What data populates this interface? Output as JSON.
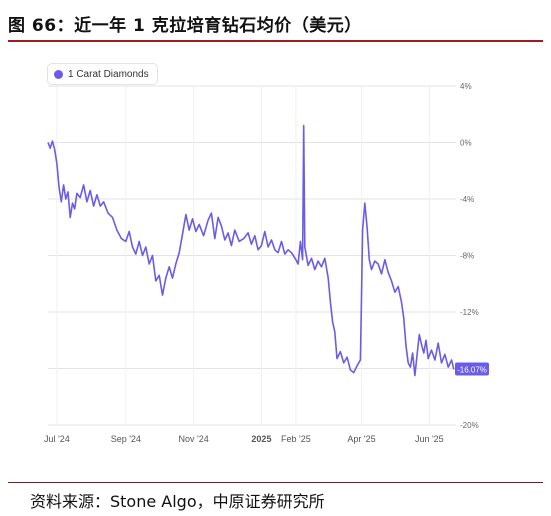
{
  "figure": {
    "title": "图 66：近一年 1 克拉培育钻石均价（美元）",
    "source": "资料来源：Stone Algo，中原证券研究所"
  },
  "colors": {
    "series": "#6b5ce7",
    "title_rule": "#9b1c22",
    "grid": "#e3e3e3"
  },
  "chart_data": {
    "type": "line",
    "title": "",
    "legend_position": "top-left",
    "grid": true,
    "y_axis_position": "right",
    "ylim": [
      -20,
      4
    ],
    "y_ticks": [
      4,
      0,
      -4,
      -8,
      -12,
      -16,
      -20
    ],
    "y_tick_labels": [
      "4%",
      "0%",
      "-4%",
      "-8%",
      "-12%",
      "-16%",
      "-20%"
    ],
    "x_tick_labels": [
      "Jul '24",
      "Sep '24",
      "Nov '24",
      "2025",
      "Feb '25",
      "Apr '25",
      "Jun '25"
    ],
    "x_tick_dates": [
      "2024-07-01",
      "2024-09-01",
      "2024-11-01",
      "2025-01-01",
      "2025-02-01",
      "2025-04-01",
      "2025-06-01"
    ],
    "xlim": [
      "2024-06-23",
      "2025-06-25"
    ],
    "last_value_label": "-16.07%",
    "series": [
      {
        "name": "1 Carat Diamonds",
        "points": [
          [
            "2024-06-23",
            0
          ],
          [
            "2024-06-25",
            -0.4
          ],
          [
            "2024-06-27",
            0.1
          ],
          [
            "2024-06-29",
            -0.5
          ],
          [
            "2024-07-01",
            -1.5
          ],
          [
            "2024-07-03",
            -3.2
          ],
          [
            "2024-07-05",
            -4.2
          ],
          [
            "2024-07-07",
            -3.0
          ],
          [
            "2024-07-09",
            -4.0
          ],
          [
            "2024-07-11",
            -3.5
          ],
          [
            "2024-07-13",
            -5.3
          ],
          [
            "2024-07-15",
            -4.3
          ],
          [
            "2024-07-17",
            -4.7
          ],
          [
            "2024-07-19",
            -3.6
          ],
          [
            "2024-07-22",
            -3.9
          ],
          [
            "2024-07-25",
            -3.0
          ],
          [
            "2024-07-28",
            -4.2
          ],
          [
            "2024-07-31",
            -3.4
          ],
          [
            "2024-08-03",
            -4.5
          ],
          [
            "2024-08-06",
            -3.7
          ],
          [
            "2024-08-09",
            -4.5
          ],
          [
            "2024-08-12",
            -4.2
          ],
          [
            "2024-08-16",
            -5.0
          ],
          [
            "2024-08-20",
            -5.3
          ],
          [
            "2024-08-24",
            -6.2
          ],
          [
            "2024-08-28",
            -6.8
          ],
          [
            "2024-09-01",
            -7.0
          ],
          [
            "2024-09-04",
            -6.3
          ],
          [
            "2024-09-07",
            -7.4
          ],
          [
            "2024-09-10",
            -7.9
          ],
          [
            "2024-09-13",
            -7.0
          ],
          [
            "2024-09-16",
            -8.0
          ],
          [
            "2024-09-19",
            -7.4
          ],
          [
            "2024-09-22",
            -8.6
          ],
          [
            "2024-09-25",
            -8.0
          ],
          [
            "2024-09-28",
            -9.8
          ],
          [
            "2024-10-01",
            -9.4
          ],
          [
            "2024-10-04",
            -10.8
          ],
          [
            "2024-10-07",
            -9.6
          ],
          [
            "2024-10-10",
            -8.8
          ],
          [
            "2024-10-13",
            -9.6
          ],
          [
            "2024-10-16",
            -8.6
          ],
          [
            "2024-10-19",
            -7.8
          ],
          [
            "2024-10-22",
            -6.5
          ],
          [
            "2024-10-25",
            -5.1
          ],
          [
            "2024-10-28",
            -6.2
          ],
          [
            "2024-10-31",
            -5.4
          ],
          [
            "2024-11-03",
            -6.3
          ],
          [
            "2024-11-06",
            -5.8
          ],
          [
            "2024-11-10",
            -6.6
          ],
          [
            "2024-11-14",
            -5.5
          ],
          [
            "2024-11-17",
            -5.0
          ],
          [
            "2024-11-20",
            -6.8
          ],
          [
            "2024-11-23",
            -5.3
          ],
          [
            "2024-11-26",
            -5.9
          ],
          [
            "2024-11-29",
            -6.9
          ],
          [
            "2024-12-02",
            -6.4
          ],
          [
            "2024-12-05",
            -7.3
          ],
          [
            "2024-12-08",
            -6.2
          ],
          [
            "2024-12-12",
            -7.0
          ],
          [
            "2024-12-16",
            -6.8
          ],
          [
            "2024-12-20",
            -6.4
          ],
          [
            "2024-12-23",
            -7.2
          ],
          [
            "2024-12-26",
            -6.6
          ],
          [
            "2024-12-29",
            -7.6
          ],
          [
            "2025-01-01",
            -7.3
          ],
          [
            "2025-01-04",
            -6.3
          ],
          [
            "2025-01-07",
            -7.4
          ],
          [
            "2025-01-10",
            -6.9
          ],
          [
            "2025-01-13",
            -7.6
          ],
          [
            "2025-01-16",
            -7.8
          ],
          [
            "2025-01-19",
            -7.0
          ],
          [
            "2025-01-22",
            -7.9
          ],
          [
            "2025-01-25",
            -7.6
          ],
          [
            "2025-01-28",
            -7.8
          ],
          [
            "2025-02-01",
            -8.3
          ],
          [
            "2025-02-03",
            -8.6
          ],
          [
            "2025-02-05",
            -7.0
          ],
          [
            "2025-02-07",
            -8.3
          ],
          [
            "2025-02-08",
            1.2
          ],
          [
            "2025-02-09",
            -7.4
          ],
          [
            "2025-02-12",
            -8.7
          ],
          [
            "2025-02-15",
            -8.2
          ],
          [
            "2025-02-18",
            -9.0
          ],
          [
            "2025-02-21",
            -8.4
          ],
          [
            "2025-02-24",
            -8.8
          ],
          [
            "2025-02-27",
            -8.2
          ],
          [
            "2025-03-02",
            -9.6
          ],
          [
            "2025-03-04",
            -11.3
          ],
          [
            "2025-03-06",
            -12.7
          ],
          [
            "2025-03-08",
            -13.4
          ],
          [
            "2025-03-10",
            -15.3
          ],
          [
            "2025-03-13",
            -14.8
          ],
          [
            "2025-03-16",
            -15.6
          ],
          [
            "2025-03-19",
            -15.2
          ],
          [
            "2025-03-22",
            -16.1
          ],
          [
            "2025-03-25",
            -16.3
          ],
          [
            "2025-03-28",
            -15.8
          ],
          [
            "2025-03-31",
            -15.4
          ],
          [
            "2025-04-01",
            -11.0
          ],
          [
            "2025-04-02",
            -6.2
          ],
          [
            "2025-04-04",
            -4.3
          ],
          [
            "2025-04-06",
            -6.0
          ],
          [
            "2025-04-08",
            -8.3
          ],
          [
            "2025-04-10",
            -9.0
          ],
          [
            "2025-04-13",
            -8.4
          ],
          [
            "2025-04-16",
            -8.6
          ],
          [
            "2025-04-19",
            -9.3
          ],
          [
            "2025-04-22",
            -8.3
          ],
          [
            "2025-04-25",
            -9.2
          ],
          [
            "2025-04-28",
            -9.8
          ],
          [
            "2025-05-01",
            -10.6
          ],
          [
            "2025-05-04",
            -10.2
          ],
          [
            "2025-05-07",
            -11.3
          ],
          [
            "2025-05-09",
            -12.4
          ],
          [
            "2025-05-11",
            -14.4
          ],
          [
            "2025-05-13",
            -15.6
          ],
          [
            "2025-05-15",
            -15.9
          ],
          [
            "2025-05-17",
            -14.9
          ],
          [
            "2025-05-19",
            -16.5
          ],
          [
            "2025-05-21",
            -15.0
          ],
          [
            "2025-05-23",
            -13.6
          ],
          [
            "2025-05-25",
            -14.3
          ],
          [
            "2025-05-27",
            -14.9
          ],
          [
            "2025-05-29",
            -14.0
          ],
          [
            "2025-05-31",
            -15.3
          ],
          [
            "2025-06-03",
            -14.7
          ],
          [
            "2025-06-06",
            -15.4
          ],
          [
            "2025-06-09",
            -14.2
          ],
          [
            "2025-06-12",
            -15.6
          ],
          [
            "2025-06-15",
            -15.0
          ],
          [
            "2025-06-18",
            -15.9
          ],
          [
            "2025-06-21",
            -15.4
          ],
          [
            "2025-06-23",
            -16.07
          ]
        ]
      }
    ]
  }
}
